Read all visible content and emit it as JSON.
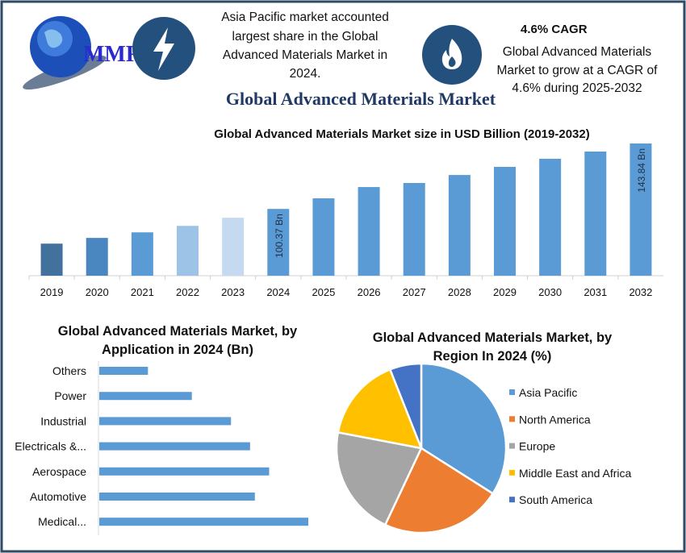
{
  "header": {
    "logo_text": "MMR",
    "icons": [
      "lightning-icon",
      "flame-icon"
    ],
    "share_text": [
      "Asia Pacific market accounted",
      "largest share in the Global",
      "Advanced Materials Market in",
      "2024."
    ],
    "cagr_title": "4.6% CAGR",
    "cagr_text": [
      "Global Advanced Materials",
      "Market to grow at a CAGR of",
      "4.6% during 2025-2032"
    ],
    "main_title": "Global Advanced Materials Market"
  },
  "colors": {
    "frame": "#2e4a66",
    "icon_circle": "#24507e",
    "title": "#1f3864",
    "bar": "#5b9bd5"
  },
  "chart_data": [
    {
      "type": "bar",
      "title": "Global Advanced Materials Market size in USD Billion (2019-2032)",
      "categories": [
        "2019",
        "2020",
        "2021",
        "2022",
        "2023",
        "2024",
        "2025",
        "2026",
        "2027",
        "2028",
        "2029",
        "2030",
        "2031",
        "2032"
      ],
      "values": [
        77.3,
        81.1,
        84.8,
        89.1,
        94.5,
        100.37,
        107.4,
        114.9,
        117.6,
        122.9,
        128.3,
        133.7,
        138.5,
        143.84
      ],
      "colors": [
        "#41719c",
        "#4a86c0",
        "#5b9bd5",
        "#9dc3e6",
        "#c5d9f1",
        "#5b9bd5",
        "#5b9bd5",
        "#5b9bd5",
        "#5b9bd5",
        "#5b9bd5",
        "#5b9bd5",
        "#5b9bd5",
        "#5b9bd5",
        "#5b9bd5"
      ],
      "data_labels": {
        "2024": "100.37 Bn",
        "2032": "143.84 Bn"
      },
      "xlabel": "",
      "ylabel": "",
      "ylim": [
        56,
        146
      ],
      "grid": false
    },
    {
      "type": "bar",
      "orientation": "horizontal",
      "title": [
        "Global Advanced Materials Market, by",
        "Application in 2024 (Bn)"
      ],
      "categories": [
        "Others",
        "Power",
        "Industrial",
        "Electricals &...",
        "Aerospace",
        "Automotive",
        "Medical..."
      ],
      "values": [
        5.1,
        9.7,
        13.8,
        15.8,
        17.8,
        16.3,
        21.9
      ],
      "color": "#5b9bd5",
      "grid": false
    },
    {
      "type": "pie",
      "title": [
        "Global Advanced Materials Market, by",
        "Region In 2024 (%)"
      ],
      "labels": [
        "Asia Pacific",
        "North America",
        "Europe",
        "Middle East and Africa",
        "South America"
      ],
      "values": [
        34,
        23,
        21,
        16,
        6
      ],
      "colors": [
        "#5b9bd5",
        "#ed7d31",
        "#a5a5a5",
        "#ffc000",
        "#4472c4"
      ],
      "legend": "right"
    }
  ]
}
